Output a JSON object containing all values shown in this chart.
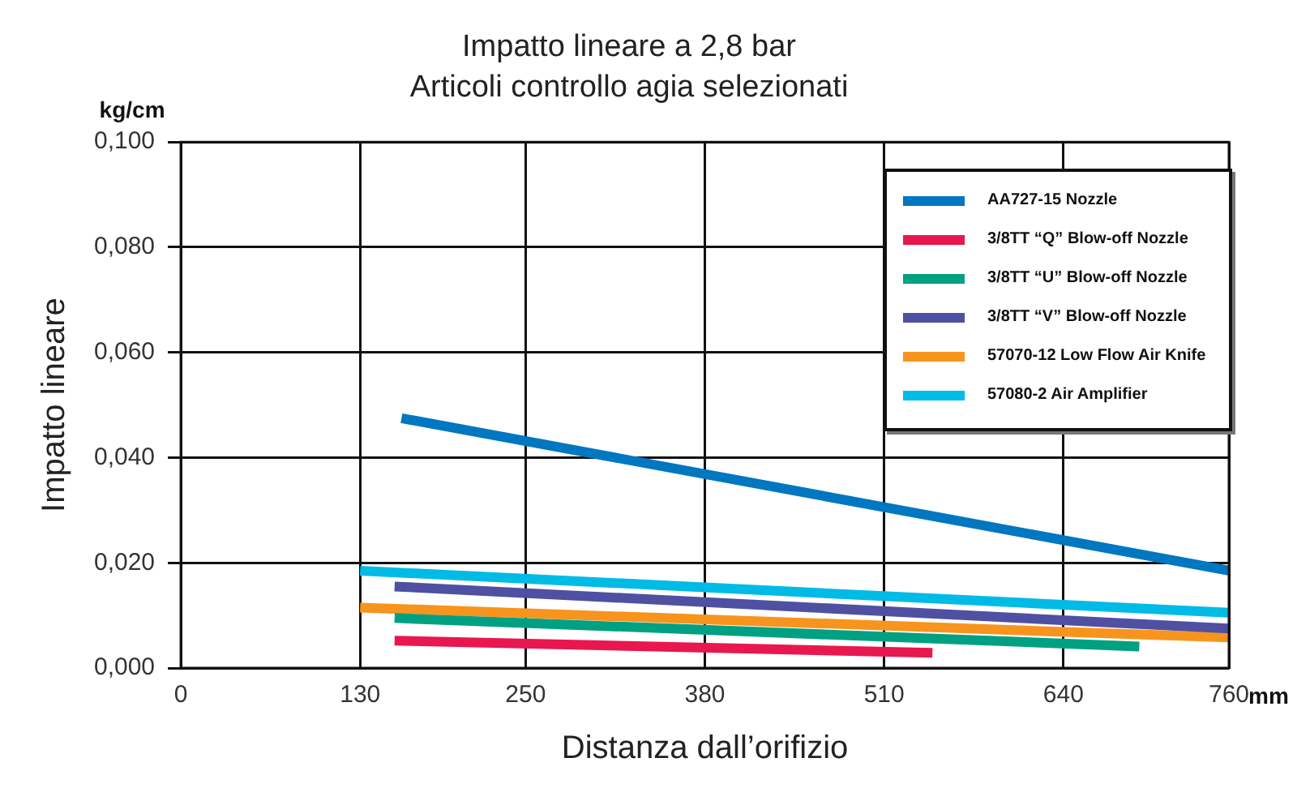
{
  "chart_data": {
    "type": "line",
    "title": "Impatto lineare a 2,8 bar",
    "subtitle": "Articoli controllo agia selezionati",
    "xlabel": "Distanza dall’orifizio",
    "ylabel": "Impatto lineare",
    "annotations": [
      "kg/cm",
      "mm"
    ],
    "xlim": [
      0,
      760
    ],
    "xticks": [
      0,
      130,
      250,
      380,
      510,
      640,
      760
    ],
    "ylim": [
      0,
      0.1
    ],
    "yticks": [
      {
        "value": 0,
        "label": "0,000"
      },
      {
        "value": 0.02,
        "label": "0,020"
      },
      {
        "value": 0.04,
        "label": "0,040"
      },
      {
        "value": 0.06,
        "label": "0,060"
      },
      {
        "value": 0.08,
        "label": "0,080"
      },
      {
        "value": 0.1,
        "label": "0,100"
      }
    ],
    "grid": true,
    "legend": "top right",
    "marker": "none",
    "line_style": "solid",
    "series": [
      {
        "name": "AA727-15 Nozzle",
        "color": "#0077c0",
        "x": [
          160,
          760
        ],
        "values": [
          0.0475,
          0.0185
        ]
      },
      {
        "name": "3/8TT “Q” Blow-off Nozzle",
        "color": "#e8174f",
        "x": [
          155,
          545
        ],
        "values": [
          0.0052,
          0.0029
        ]
      },
      {
        "name": "3/8TT “U” Blow-off Nozzle",
        "color": "#00a082",
        "x": [
          155,
          695
        ],
        "values": [
          0.0095,
          0.0041
        ]
      },
      {
        "name": "3/8TT “V” Blow-off Nozzle",
        "color": "#4f50a2",
        "x": [
          155,
          760
        ],
        "values": [
          0.0155,
          0.0075
        ]
      },
      {
        "name": "57070-12 Low Flow Air Knife",
        "color": "#f7941d",
        "x": [
          130,
          760
        ],
        "values": [
          0.0115,
          0.0058
        ]
      },
      {
        "name": "57080-2 Air Amplifier",
        "color": "#00bbe6",
        "x": [
          130,
          760
        ],
        "values": [
          0.0185,
          0.0105
        ]
      }
    ]
  }
}
